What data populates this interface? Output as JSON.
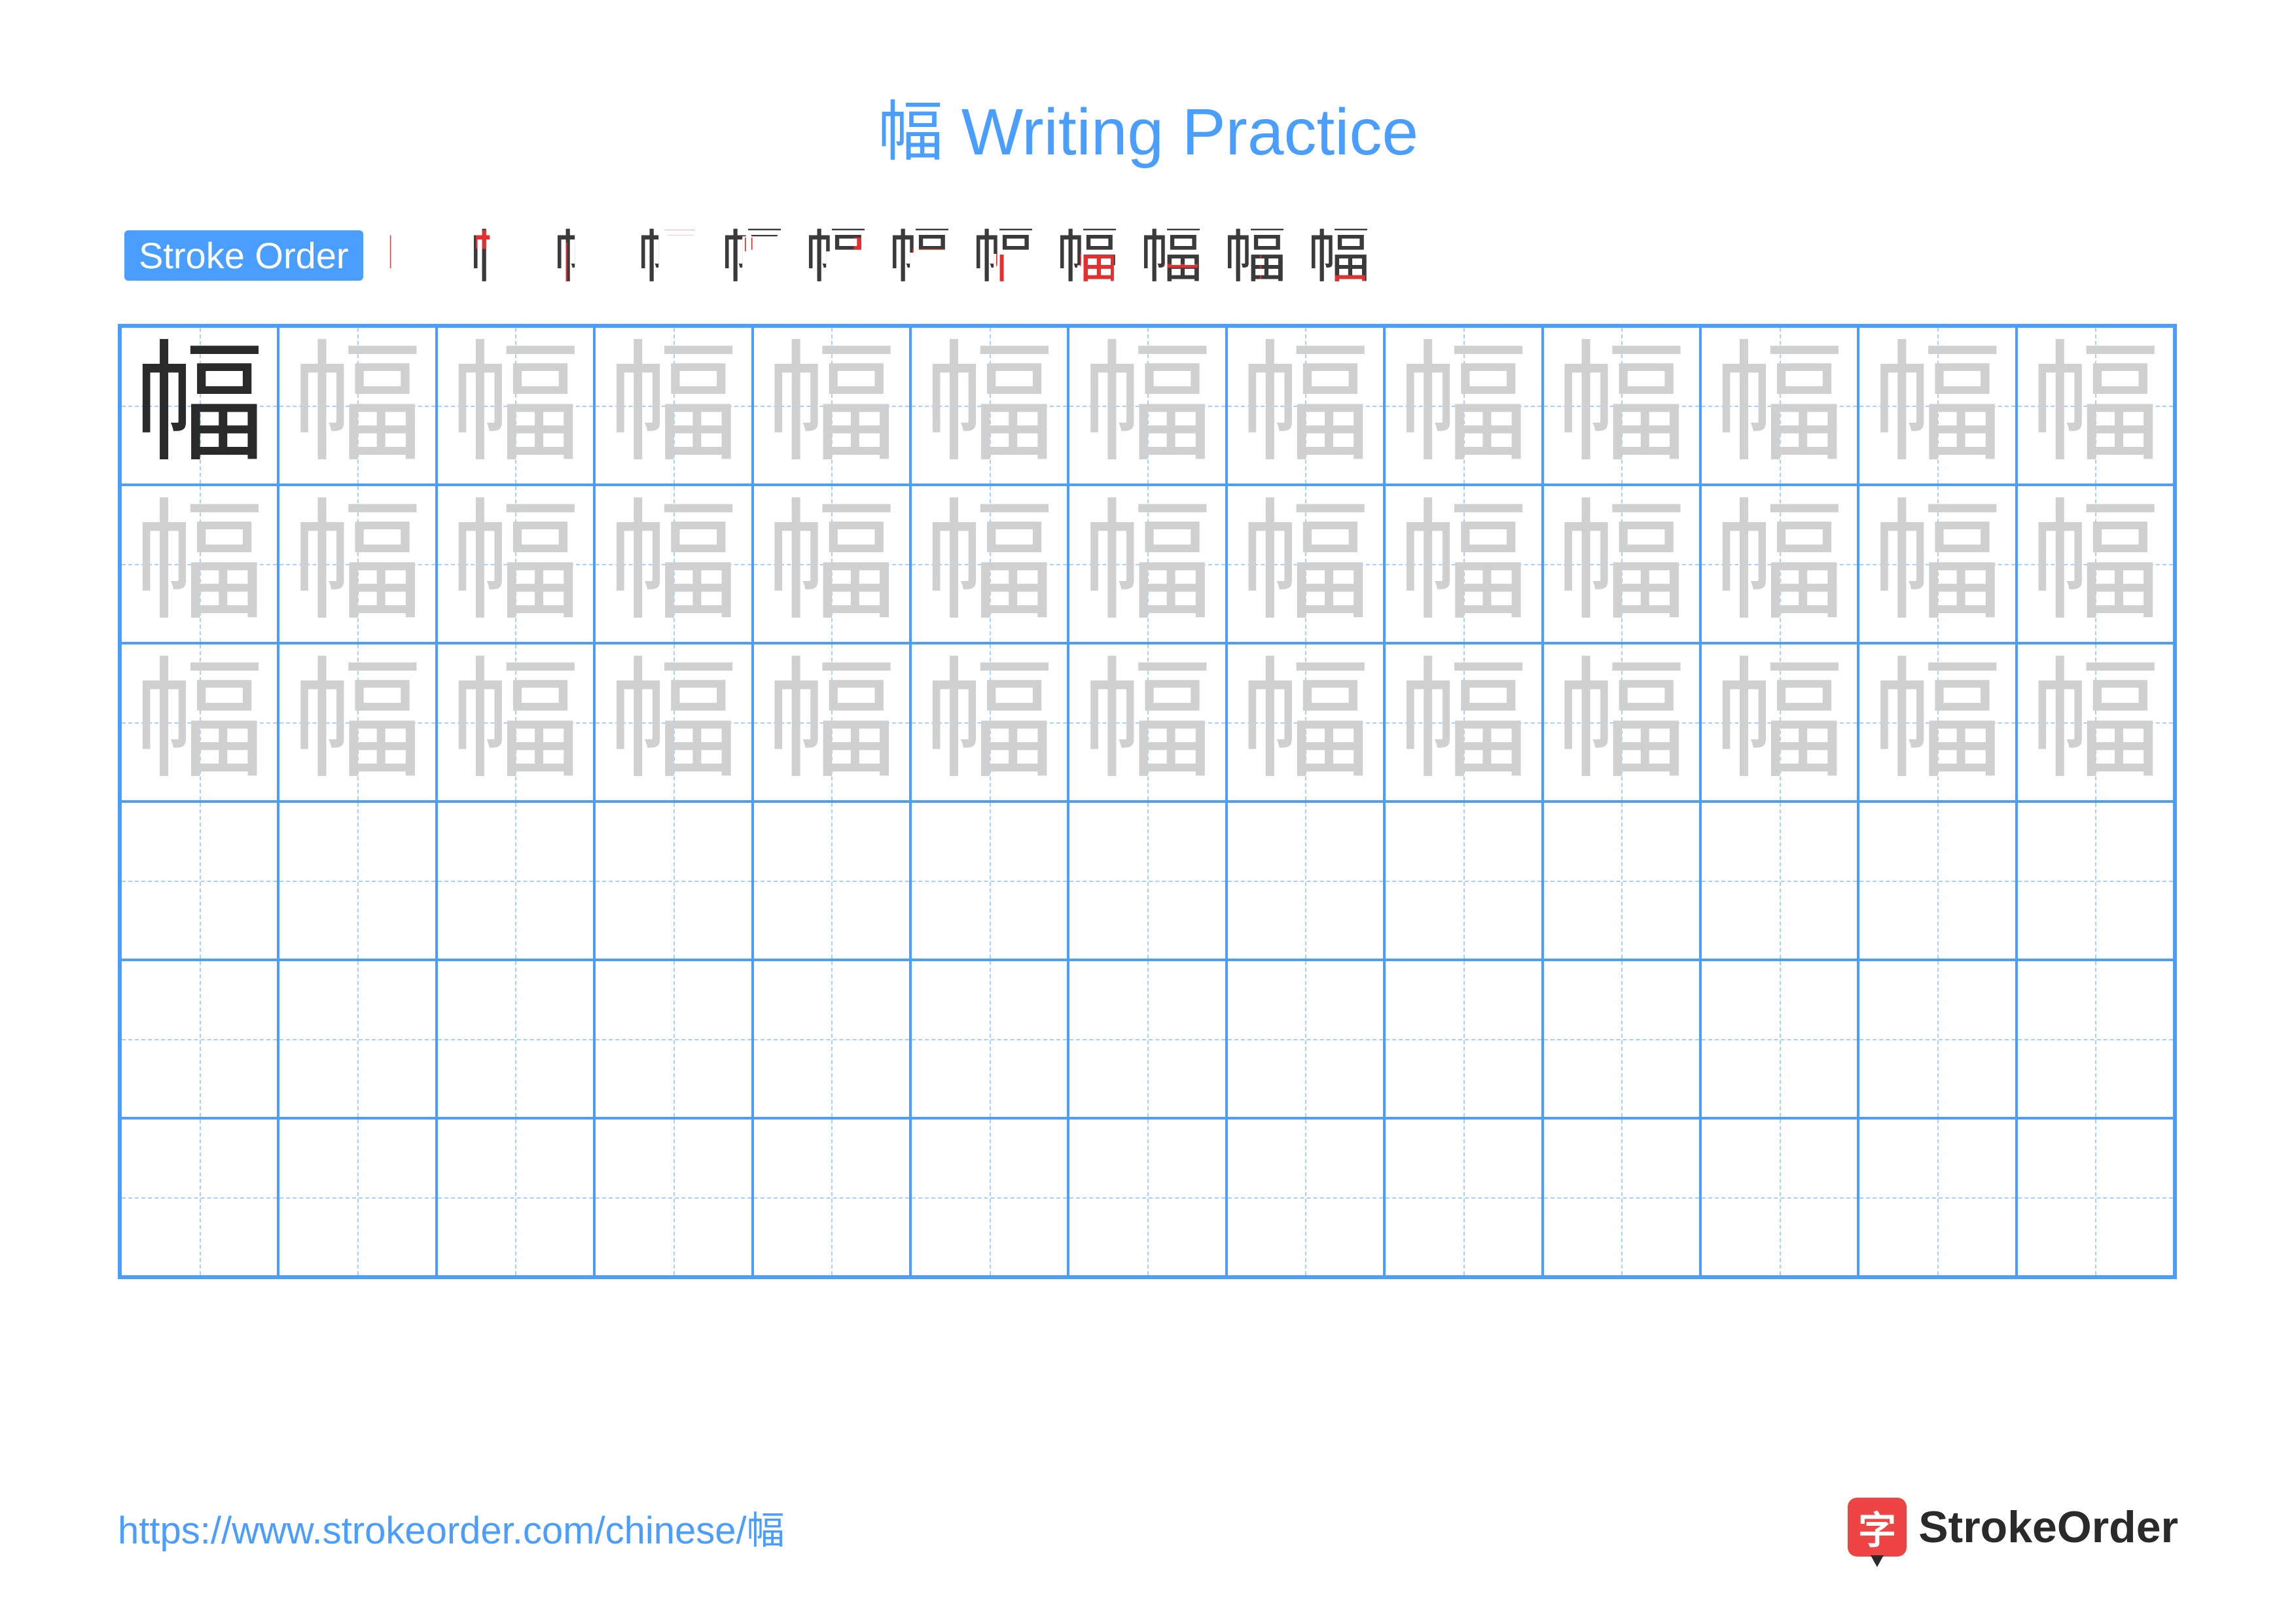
{
  "colors": {
    "accent": "#4a9eff",
    "title": "#4a9eff",
    "stroke_label_bg": "#4a9eff",
    "grid_border": "#4a9eff",
    "guide_line": "#a8d0ff",
    "model_char": "#2a2a2a",
    "trace_char": "#d0d0d0",
    "stroke_black": "#3a3a3a",
    "stroke_red": "#e03030",
    "url": "#4a9eff",
    "logo_badge": "#ef4444",
    "logo_text": "#2a2a2a",
    "logo_tip": "#2a2a2a"
  },
  "character": "幅",
  "title": "幅 Writing Practice",
  "stroke_order_label": "Stroke Order",
  "stroke_steps_count": 12,
  "grid": {
    "rows": 6,
    "cols": 13,
    "trace_rows": 3,
    "model_cell": {
      "row": 0,
      "col": 0
    }
  },
  "footer": {
    "url": "https://www.strokeorder.com/chinese/幅",
    "logo_char": "字",
    "logo_text": "StrokeOrder"
  }
}
